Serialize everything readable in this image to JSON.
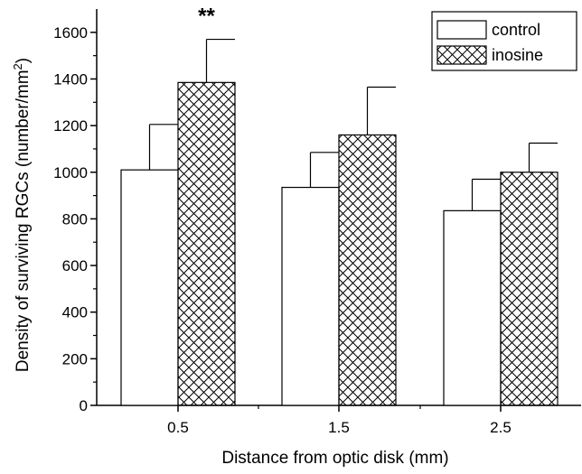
{
  "chart_data": {
    "type": "bar",
    "xlabel": "Distance from optic disk (mm)",
    "ylabel_main": "Density of surviving RGCs (number/mm",
    "ylabel_sup": "2",
    "ylabel_close": ")",
    "ylim": [
      0,
      1700
    ],
    "yticks": [
      0,
      200,
      400,
      600,
      800,
      1000,
      1200,
      1400,
      1600
    ],
    "categories": [
      "0.5",
      "1.5",
      "2.5"
    ],
    "series": [
      {
        "name": "control",
        "pattern": "none",
        "values": [
          1010,
          935,
          835
        ],
        "errors": [
          195,
          150,
          135
        ]
      },
      {
        "name": "inosine",
        "pattern": "crosshatch",
        "values": [
          1385,
          1160,
          1000
        ],
        "errors": [
          185,
          205,
          125
        ]
      }
    ],
    "annotations": [
      {
        "text": "**",
        "category_index": 0,
        "series_index": 1
      }
    ],
    "legend_position": "top-right",
    "grid": false,
    "colors": {
      "bar_fill": "#ffffff",
      "stroke": "#000000"
    }
  }
}
